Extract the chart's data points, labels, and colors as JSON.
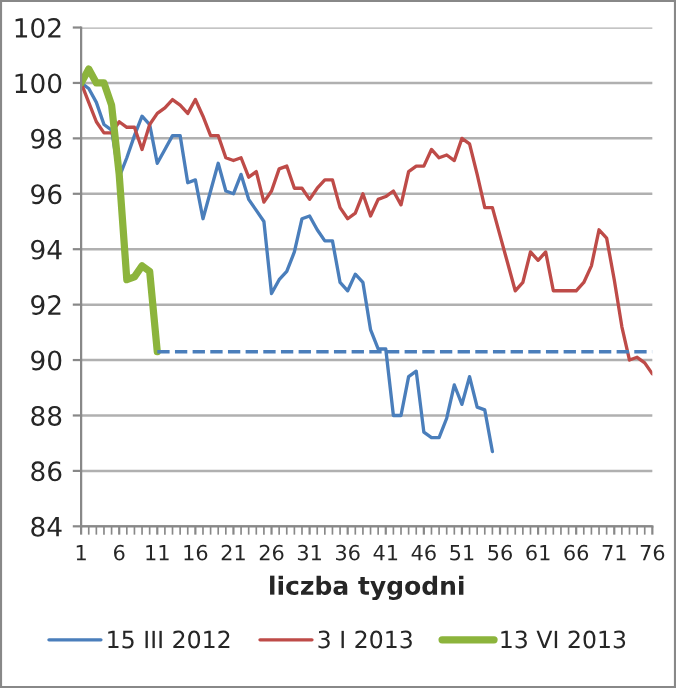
{
  "chart_data": {
    "type": "line",
    "xlabel": "liczba tygodni",
    "xlim": [
      1,
      76
    ],
    "xticks": [
      1,
      6,
      11,
      16,
      21,
      26,
      31,
      36,
      41,
      46,
      51,
      56,
      61,
      66,
      71,
      76
    ],
    "ylim": [
      84,
      102
    ],
    "yticks": [
      84,
      86,
      88,
      90,
      92,
      94,
      96,
      98,
      100,
      102
    ],
    "grid": "y",
    "legend": "bottom",
    "marker": "none",
    "series": [
      {
        "name": "15 III 2012",
        "color": "#4a7ebb",
        "x": [
          1,
          2,
          3,
          4,
          5,
          6,
          7,
          8,
          9,
          10,
          11,
          12,
          13,
          14,
          15,
          16,
          17,
          18,
          19,
          20,
          21,
          22,
          23,
          24,
          25,
          26,
          27,
          28,
          29,
          30,
          31,
          32,
          33,
          34,
          35,
          36,
          37,
          38,
          39,
          40,
          41,
          42,
          43,
          44,
          45,
          46,
          47,
          48,
          49,
          50,
          51,
          52,
          53,
          54,
          55
        ],
        "values": [
          100,
          99.8,
          99.3,
          98.5,
          98.3,
          96.6,
          97.3,
          98.1,
          98.8,
          98.5,
          97.1,
          97.6,
          98.1,
          98.1,
          96.4,
          96.5,
          95.1,
          96.1,
          97.1,
          96.1,
          96.0,
          96.7,
          95.8,
          95.4,
          95.0,
          92.4,
          92.9,
          93.2,
          93.9,
          95.1,
          95.2,
          94.7,
          94.3,
          94.3,
          92.8,
          92.5,
          93.1,
          92.8,
          91.1,
          90.4,
          90.4,
          88.0,
          88.0,
          89.4,
          89.6,
          87.4,
          87.2,
          87.2,
          87.9,
          89.1,
          88.4,
          89.4,
          88.3,
          88.2,
          86.7
        ]
      },
      {
        "name": "3 I 2013",
        "color": "#be4b48",
        "x": [
          1,
          2,
          3,
          4,
          5,
          6,
          7,
          8,
          9,
          10,
          11,
          12,
          13,
          14,
          15,
          16,
          17,
          18,
          19,
          20,
          21,
          22,
          23,
          24,
          25,
          26,
          27,
          28,
          29,
          30,
          31,
          32,
          33,
          34,
          35,
          36,
          37,
          38,
          39,
          40,
          41,
          42,
          43,
          44,
          45,
          46,
          47,
          48,
          49,
          50,
          51,
          52,
          53,
          54,
          55,
          56,
          57,
          58,
          59,
          60,
          61,
          62,
          63,
          64,
          65,
          66,
          67,
          68,
          69,
          70,
          71,
          72,
          73,
          74,
          75,
          76
        ],
        "values": [
          100,
          99.3,
          98.6,
          98.2,
          98.2,
          98.6,
          98.4,
          98.4,
          97.6,
          98.5,
          98.9,
          99.1,
          99.4,
          99.2,
          98.9,
          99.4,
          98.8,
          98.1,
          98.1,
          97.3,
          97.2,
          97.3,
          96.6,
          96.8,
          95.7,
          96.1,
          96.9,
          97.0,
          96.2,
          96.2,
          95.8,
          96.2,
          96.5,
          96.5,
          95.5,
          95.1,
          95.3,
          96.0,
          95.2,
          95.8,
          95.9,
          96.1,
          95.6,
          96.8,
          97.0,
          97.0,
          97.6,
          97.3,
          97.4,
          97.2,
          98.0,
          97.8,
          96.7,
          95.5,
          95.5,
          94.5,
          93.5,
          92.5,
          92.8,
          93.9,
          93.6,
          93.9,
          92.5,
          92.5,
          92.5,
          92.5,
          92.8,
          93.4,
          94.7,
          94.4,
          92.9,
          91.2,
          90.0,
          90.1,
          89.9,
          89.5
        ]
      },
      {
        "name": "13 VI 2013",
        "color": "#8cb43c",
        "x": [
          1,
          2,
          3,
          4,
          5,
          6,
          7,
          8,
          9,
          10,
          11
        ],
        "values": [
          100,
          100.5,
          100.0,
          100.0,
          99.2,
          96.7,
          92.9,
          93.0,
          93.4,
          93.2,
          90.3
        ]
      },
      {
        "color": "#4a7ebb",
        "line_style": "dashed",
        "x": [
          11,
          76
        ],
        "values": [
          90.3,
          90.3
        ]
      }
    ]
  }
}
